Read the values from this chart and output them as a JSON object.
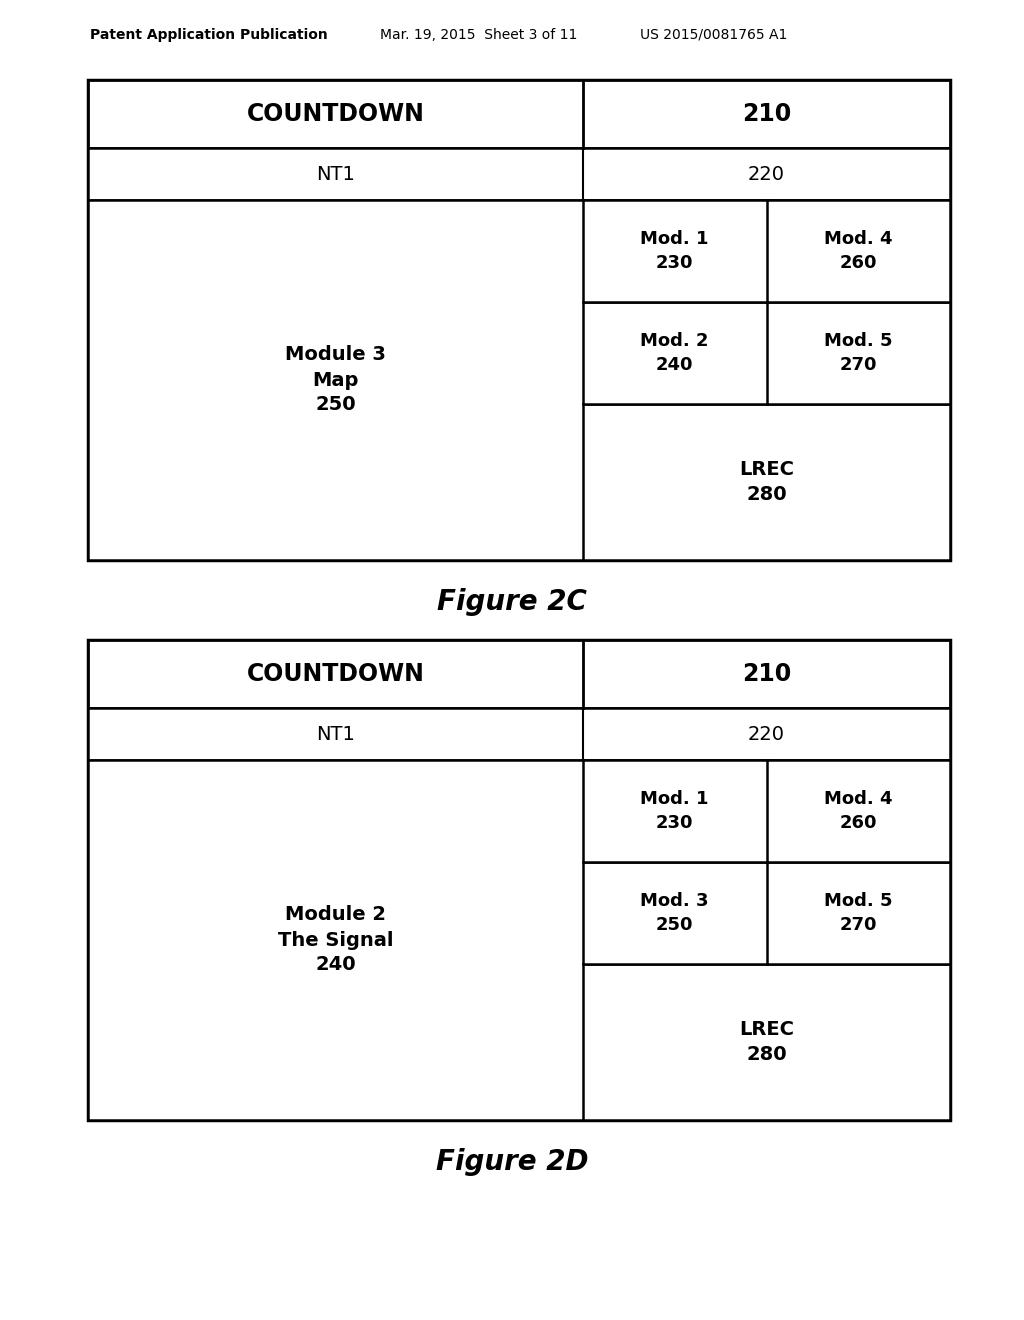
{
  "header_line1": "Patent Application Publication",
  "header_line2": "Mar. 19, 2015  Sheet 3 of 11",
  "header_line3": "US 2015/0081765 A1",
  "fig2c_label": "Figure 2C",
  "fig2d_label": "Figure 2D",
  "diagram1": {
    "countdown_label": "COUNTDOWN",
    "countdown_num": "210",
    "nt1_label": "NT1",
    "nt1_num": "220",
    "left_module_lines": "Module 3\nMap\n250",
    "mod1_label": "Mod. 1\n230",
    "mod4_label": "Mod. 4\n260",
    "mod2_label": "Mod. 2\n240",
    "mod5_label": "Mod. 5\n270",
    "lrec_label": "LREC\n280"
  },
  "diagram2": {
    "countdown_label": "COUNTDOWN",
    "countdown_num": "210",
    "nt1_label": "NT1",
    "nt1_num": "220",
    "left_module_lines": "Module 2\nThe Signal\n240",
    "mod1_label": "Mod. 1\n230",
    "mod4_label": "Mod. 4\n260",
    "mod3_label": "Mod. 3\n250",
    "mod5_label": "Mod. 5\n270",
    "lrec_label": "LREC\n280"
  },
  "bg_color": "#ffffff",
  "line_color": "#000000"
}
